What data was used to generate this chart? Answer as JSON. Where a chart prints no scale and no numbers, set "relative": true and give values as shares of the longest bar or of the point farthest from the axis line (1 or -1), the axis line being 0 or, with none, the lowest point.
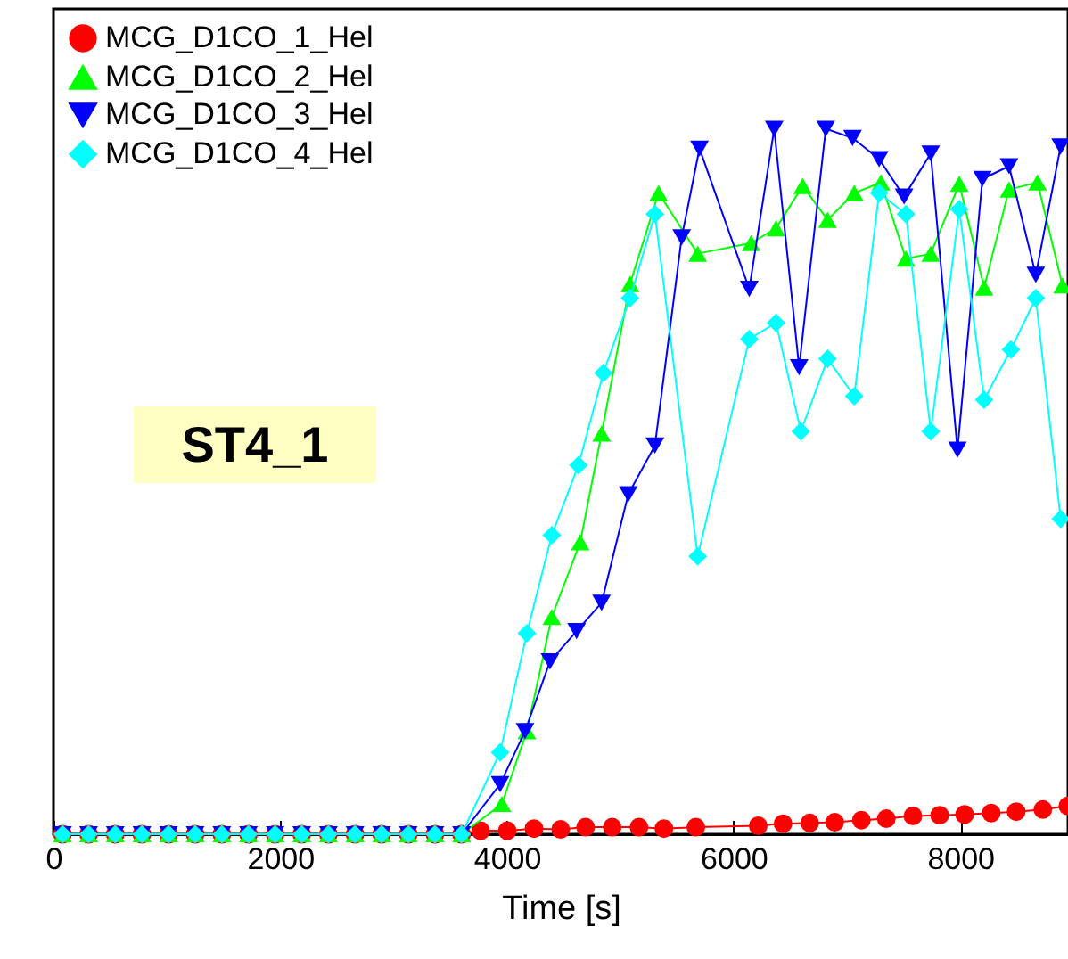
{
  "chart_data": {
    "type": "line",
    "xlabel": "Time [s]",
    "relative": true,
    "xlim": [
      0,
      8950
    ],
    "xticks": [
      0,
      2000,
      4000,
      6000,
      8000
    ],
    "grid": false,
    "legend": "top left",
    "line_style": "solid",
    "annotations": [
      "ST4_1"
    ],
    "series": [
      {
        "name": "MCG_D1CO_1_Hel",
        "color": "#ff0000",
        "marker": "circle",
        "x": [
          80,
          310,
          545,
          780,
          1015,
          1250,
          1485,
          1720,
          1955,
          2190,
          2425,
          2660,
          2895,
          3130,
          3365,
          3600,
          3768,
          4003,
          4239,
          4474,
          4694,
          4929,
          5165,
          5385,
          5667,
          6217,
          6436,
          6672,
          6892,
          7127,
          7347,
          7582,
          7818,
          8038,
          8273,
          8493,
          8728,
          8948
        ],
        "values": [
          0,
          0,
          0,
          0,
          0,
          0,
          0,
          0,
          0,
          0,
          0,
          0,
          0,
          0,
          0,
          0,
          0.005,
          0.005,
          0.008,
          0.007,
          0.01,
          0.01,
          0.01,
          0.008,
          0.01,
          0.012,
          0.015,
          0.016,
          0.017,
          0.02,
          0.022,
          0.026,
          0.027,
          0.028,
          0.03,
          0.032,
          0.035,
          0.04
        ]
      },
      {
        "name": "MCG_D1CO_2_Hel",
        "color": "#00ff00",
        "marker": "triangle",
        "x": [
          80,
          310,
          545,
          780,
          1015,
          1250,
          1485,
          1720,
          1955,
          2190,
          2425,
          2660,
          2895,
          3130,
          3365,
          3600,
          3956,
          4176,
          4396,
          4647,
          4835,
          5086,
          5338,
          5683,
          6154,
          6374,
          6609,
          6829,
          7064,
          7300,
          7520,
          7739,
          7991,
          8210,
          8430,
          8681,
          8901
        ],
        "values": [
          0,
          0,
          0,
          0,
          0,
          0,
          0,
          0,
          0,
          0,
          0,
          0,
          0,
          0,
          0,
          0,
          0.043,
          0.146,
          0.308,
          0.414,
          0.568,
          0.78,
          0.909,
          0.823,
          0.838,
          0.859,
          0.919,
          0.871,
          0.909,
          0.924,
          0.816,
          0.823,
          0.922,
          0.775,
          0.914,
          0.924,
          0.778
        ]
      },
      {
        "name": "MCG_D1CO_3_Hel",
        "color": "#0000ff",
        "marker": "triangle-down",
        "x": [
          80,
          310,
          545,
          780,
          1015,
          1250,
          1485,
          1720,
          1955,
          2190,
          2425,
          2660,
          2895,
          3130,
          3365,
          3600,
          3940,
          4160,
          4380,
          4615,
          4835,
          5071,
          5306,
          5542,
          5699,
          6138,
          6358,
          6578,
          6813,
          7049,
          7284,
          7504,
          7739,
          7975,
          8195,
          8430,
          8666,
          8885
        ],
        "values": [
          0,
          0,
          0,
          0,
          0,
          0,
          0,
          0,
          0,
          0,
          0,
          0,
          0,
          0,
          0,
          0,
          0.071,
          0.146,
          0.245,
          0.288,
          0.328,
          0.482,
          0.551,
          0.846,
          0.972,
          0.773,
          1,
          0.662,
          1,
          0.987,
          0.957,
          0.904,
          0.965,
          0.545,
          0.929,
          0.947,
          0.793,
          0.975
        ]
      },
      {
        "name": "MCG_D1CO_4_Hel",
        "color": "#00ffff",
        "marker": "diamond",
        "x": [
          80,
          310,
          545,
          780,
          1015,
          1250,
          1485,
          1720,
          1955,
          2190,
          2425,
          2660,
          2895,
          3130,
          3365,
          3600,
          3940,
          4176,
          4396,
          4631,
          4851,
          5086,
          5306,
          5683,
          6138,
          6374,
          6593,
          6829,
          7064,
          7284,
          7520,
          7739,
          7991,
          8210,
          8446,
          8666,
          8885
        ],
        "values": [
          0,
          0,
          0,
          0,
          0,
          0,
          0,
          0,
          0,
          0,
          0,
          0,
          0,
          0,
          0,
          0,
          0.116,
          0.285,
          0.424,
          0.523,
          0.654,
          0.76,
          0.879,
          0.394,
          0.702,
          0.725,
          0.571,
          0.674,
          0.621,
          0.909,
          0.879,
          0.571,
          0.886,
          0.616,
          0.687,
          0.76,
          0.447
        ]
      }
    ]
  }
}
